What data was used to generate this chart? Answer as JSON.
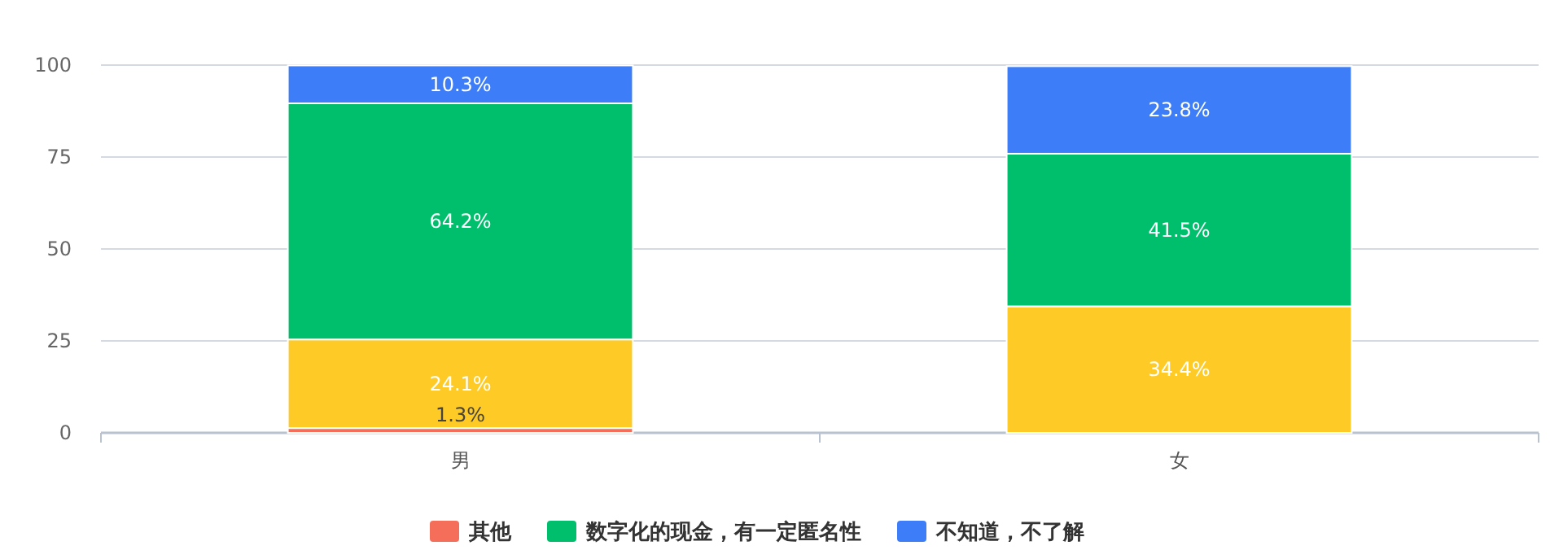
{
  "chart_data": {
    "type": "bar",
    "stacked": true,
    "categories": [
      "男",
      "女"
    ],
    "ylim": [
      0,
      100
    ],
    "yticks": [
      0,
      25,
      50,
      75,
      100
    ],
    "grid": "y",
    "legend": "bottom",
    "series": [
      {
        "name": "其他",
        "color": "#f56e5a",
        "values": [
          1.3,
          null
        ],
        "value_labels": [
          "1.3%",
          null
        ]
      },
      {
        "color": "#fecb26",
        "values": [
          24.1,
          34.4
        ],
        "value_labels": [
          "24.1%",
          "34.4%"
        ]
      },
      {
        "name": "数字化的现金，有一定匿名性",
        "color": "#00bf6c",
        "values": [
          64.2,
          41.5
        ],
        "value_labels": [
          "64.2%",
          "41.5%"
        ]
      },
      {
        "name": "不知道，不了解",
        "color": "#3d7ef8",
        "values": [
          10.3,
          23.8
        ],
        "value_labels": [
          "10.3%",
          "23.8%"
        ]
      }
    ]
  }
}
